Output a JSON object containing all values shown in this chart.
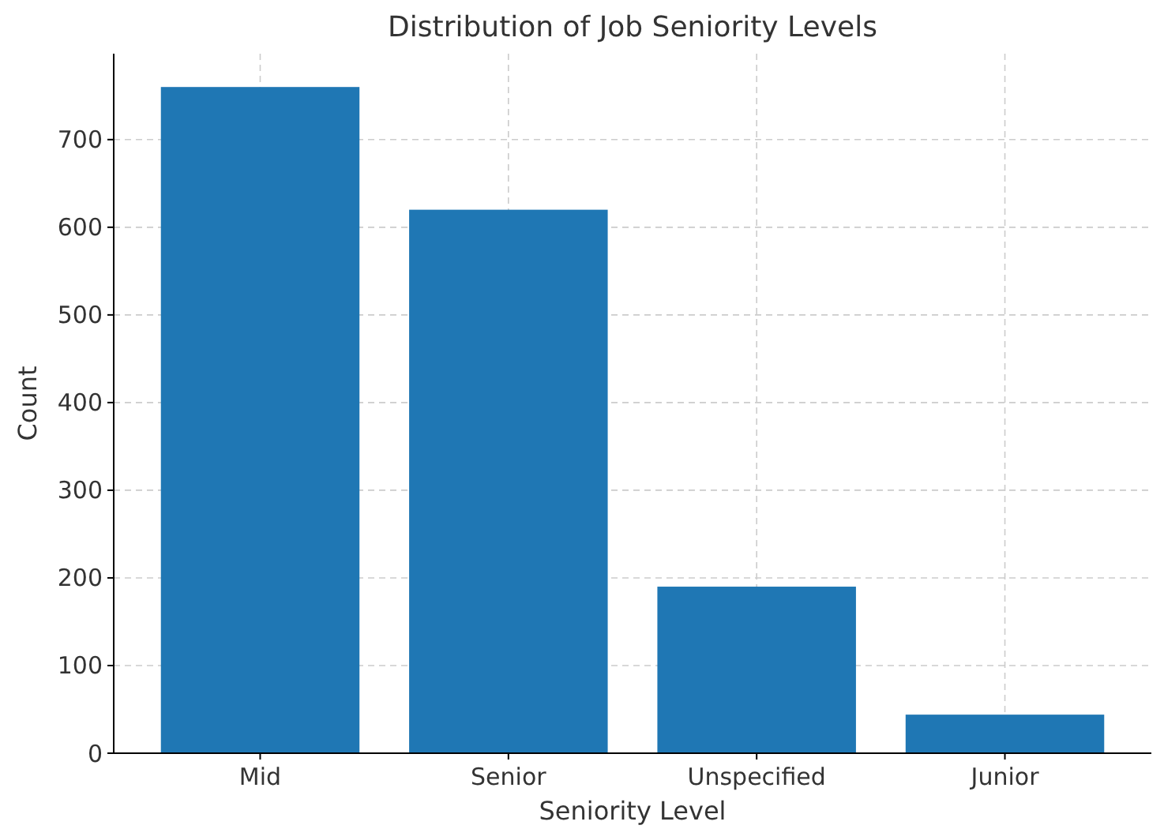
{
  "chart_data": {
    "type": "bar",
    "title": "Distribution of Job Seniority Levels",
    "xlabel": "Seniority Level",
    "ylabel": "Count",
    "categories": [
      "Mid",
      "Senior",
      "Unspecified",
      "Junior"
    ],
    "values": [
      760,
      620,
      190,
      44
    ],
    "color": "#1f77b4",
    "ylim": [
      0,
      798
    ],
    "yticks": [
      0,
      100,
      200,
      300,
      400,
      500,
      600,
      700
    ],
    "grid": true
  }
}
